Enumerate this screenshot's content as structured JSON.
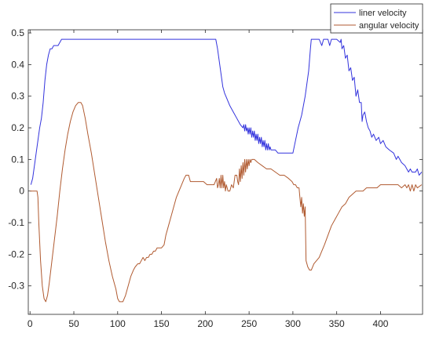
{
  "chart_data": {
    "type": "line",
    "title": "",
    "xlabel": "",
    "ylabel": "",
    "xlim": [
      -2,
      448
    ],
    "ylim": [
      -0.39,
      0.51
    ],
    "x_ticks": [
      0,
      50,
      100,
      150,
      200,
      250,
      300,
      350,
      400
    ],
    "x_tick_labels": [
      "0",
      "50",
      "100",
      "150",
      "200",
      "250",
      "300",
      "350",
      "400"
    ],
    "y_ticks": [
      0.5,
      0.4,
      0.3,
      0.2,
      0.1,
      0,
      -0.1,
      -0.2,
      -0.3
    ],
    "y_tick_labels": [
      "0.5",
      "0.4",
      "0.3",
      "0.2",
      "0.1",
      "0",
      "-0.1",
      "-0.2",
      "-0.3"
    ],
    "grid": false,
    "legend_position": "top-right",
    "series": [
      {
        "name": "liner velocity",
        "color": "#3333dd",
        "points": [
          [
            1,
            0.02
          ],
          [
            3,
            0.04
          ],
          [
            5,
            0.08
          ],
          [
            7,
            0.12
          ],
          [
            9,
            0.16
          ],
          [
            11,
            0.2
          ],
          [
            13,
            0.23
          ],
          [
            15,
            0.28
          ],
          [
            17,
            0.35
          ],
          [
            19,
            0.4
          ],
          [
            21,
            0.43
          ],
          [
            23,
            0.45
          ],
          [
            25,
            0.45
          ],
          [
            27,
            0.46
          ],
          [
            30,
            0.46
          ],
          [
            32,
            0.46
          ],
          [
            34,
            0.47
          ],
          [
            36,
            0.48
          ],
          [
            60,
            0.48
          ],
          [
            100,
            0.48
          ],
          [
            150,
            0.48
          ],
          [
            200,
            0.48
          ],
          [
            212,
            0.48
          ],
          [
            214,
            0.45
          ],
          [
            216,
            0.41
          ],
          [
            218,
            0.37
          ],
          [
            220,
            0.33
          ],
          [
            222,
            0.31
          ],
          [
            225,
            0.29
          ],
          [
            228,
            0.27
          ],
          [
            232,
            0.25
          ],
          [
            236,
            0.23
          ],
          [
            240,
            0.21
          ],
          [
            243,
            0.2
          ],
          [
            244,
            0.21
          ],
          [
            245,
            0.19
          ],
          [
            246,
            0.21
          ],
          [
            247,
            0.19
          ],
          [
            248,
            0.2
          ],
          [
            249,
            0.18
          ],
          [
            250,
            0.2
          ],
          [
            251,
            0.18
          ],
          [
            252,
            0.2
          ],
          [
            253,
            0.17
          ],
          [
            254,
            0.19
          ],
          [
            255,
            0.17
          ],
          [
            256,
            0.19
          ],
          [
            257,
            0.16
          ],
          [
            258,
            0.18
          ],
          [
            259,
            0.16
          ],
          [
            260,
            0.18
          ],
          [
            261,
            0.15
          ],
          [
            262,
            0.17
          ],
          [
            263,
            0.15
          ],
          [
            264,
            0.17
          ],
          [
            265,
            0.14
          ],
          [
            266,
            0.16
          ],
          [
            267,
            0.14
          ],
          [
            268,
            0.16
          ],
          [
            269,
            0.13
          ],
          [
            270,
            0.15
          ],
          [
            271,
            0.13
          ],
          [
            272,
            0.15
          ],
          [
            273,
            0.13
          ],
          [
            274,
            0.14
          ],
          [
            275,
            0.13
          ],
          [
            280,
            0.13
          ],
          [
            283,
            0.12
          ],
          [
            290,
            0.12
          ],
          [
            296,
            0.12
          ],
          [
            300,
            0.12
          ],
          [
            303,
            0.16
          ],
          [
            306,
            0.2
          ],
          [
            310,
            0.24
          ],
          [
            314,
            0.3
          ],
          [
            318,
            0.38
          ],
          [
            320,
            0.45
          ],
          [
            321,
            0.48
          ],
          [
            330,
            0.48
          ],
          [
            333,
            0.46
          ],
          [
            335,
            0.48
          ],
          [
            340,
            0.48
          ],
          [
            342,
            0.46
          ],
          [
            344,
            0.48
          ],
          [
            350,
            0.48
          ],
          [
            354,
            0.47
          ],
          [
            355,
            0.48
          ],
          [
            356,
            0.45
          ],
          [
            358,
            0.46
          ],
          [
            360,
            0.42
          ],
          [
            362,
            0.43
          ],
          [
            364,
            0.38
          ],
          [
            366,
            0.39
          ],
          [
            368,
            0.35
          ],
          [
            370,
            0.36
          ],
          [
            372,
            0.3
          ],
          [
            374,
            0.32
          ],
          [
            376,
            0.28
          ],
          [
            378,
            0.28
          ],
          [
            379,
            0.22
          ],
          [
            380,
            0.24
          ],
          [
            382,
            0.25
          ],
          [
            384,
            0.22
          ],
          [
            386,
            0.2
          ],
          [
            388,
            0.19
          ],
          [
            390,
            0.17
          ],
          [
            392,
            0.18
          ],
          [
            395,
            0.16
          ],
          [
            398,
            0.17
          ],
          [
            400,
            0.15
          ],
          [
            403,
            0.16
          ],
          [
            406,
            0.14
          ],
          [
            410,
            0.13
          ],
          [
            415,
            0.12
          ],
          [
            418,
            0.1
          ],
          [
            420,
            0.11
          ],
          [
            424,
            0.09
          ],
          [
            428,
            0.08
          ],
          [
            430,
            0.07
          ],
          [
            432,
            0.06
          ],
          [
            434,
            0.07
          ],
          [
            436,
            0.06
          ],
          [
            440,
            0.06
          ],
          [
            442,
            0.07
          ],
          [
            444,
            0.05
          ],
          [
            447,
            0.06
          ]
        ]
      },
      {
        "name": "angular velocity",
        "color": "#b05a30",
        "points": [
          [
            0,
            0.0
          ],
          [
            8,
            0.0
          ],
          [
            9,
            -0.02
          ],
          [
            10,
            -0.1
          ],
          [
            12,
            -0.22
          ],
          [
            14,
            -0.3
          ],
          [
            16,
            -0.34
          ],
          [
            18,
            -0.35
          ],
          [
            20,
            -0.33
          ],
          [
            22,
            -0.29
          ],
          [
            25,
            -0.22
          ],
          [
            28,
            -0.15
          ],
          [
            31,
            -0.08
          ],
          [
            34,
            0.0
          ],
          [
            37,
            0.07
          ],
          [
            40,
            0.13
          ],
          [
            43,
            0.18
          ],
          [
            46,
            0.22
          ],
          [
            49,
            0.25
          ],
          [
            52,
            0.27
          ],
          [
            55,
            0.28
          ],
          [
            58,
            0.28
          ],
          [
            60,
            0.27
          ],
          [
            63,
            0.23
          ],
          [
            66,
            0.18
          ],
          [
            70,
            0.12
          ],
          [
            74,
            0.05
          ],
          [
            78,
            -0.02
          ],
          [
            82,
            -0.09
          ],
          [
            86,
            -0.16
          ],
          [
            90,
            -0.22
          ],
          [
            94,
            -0.27
          ],
          [
            98,
            -0.31
          ],
          [
            100,
            -0.34
          ],
          [
            102,
            -0.35
          ],
          [
            106,
            -0.35
          ],
          [
            109,
            -0.33
          ],
          [
            112,
            -0.3
          ],
          [
            115,
            -0.27
          ],
          [
            118,
            -0.25
          ],
          [
            120,
            -0.24
          ],
          [
            123,
            -0.23
          ],
          [
            125,
            -0.23
          ],
          [
            127,
            -0.22
          ],
          [
            129,
            -0.21
          ],
          [
            131,
            -0.22
          ],
          [
            133,
            -0.21
          ],
          [
            135,
            -0.21
          ],
          [
            137,
            -0.2
          ],
          [
            139,
            -0.2
          ],
          [
            141,
            -0.19
          ],
          [
            143,
            -0.19
          ],
          [
            145,
            -0.18
          ],
          [
            148,
            -0.18
          ],
          [
            150,
            -0.18
          ],
          [
            153,
            -0.17
          ],
          [
            155,
            -0.14
          ],
          [
            158,
            -0.11
          ],
          [
            161,
            -0.08
          ],
          [
            164,
            -0.05
          ],
          [
            167,
            -0.02
          ],
          [
            170,
            0.0
          ],
          [
            173,
            0.02
          ],
          [
            176,
            0.04
          ],
          [
            178,
            0.05
          ],
          [
            181,
            0.05
          ],
          [
            183,
            0.03
          ],
          [
            186,
            0.03
          ],
          [
            190,
            0.03
          ],
          [
            194,
            0.03
          ],
          [
            198,
            0.03
          ],
          [
            202,
            0.02
          ],
          [
            206,
            0.02
          ],
          [
            210,
            0.02
          ],
          [
            213,
            0.04
          ],
          [
            214,
            0.01
          ],
          [
            215,
            0.02
          ],
          [
            216,
            0.04
          ],
          [
            217,
            0.01
          ],
          [
            218,
            0.05
          ],
          [
            219,
            0.01
          ],
          [
            220,
            0.05
          ],
          [
            221,
            0.01
          ],
          [
            222,
            0.03
          ],
          [
            223,
            0.0
          ],
          [
            224,
            0.02
          ],
          [
            226,
            0.0
          ],
          [
            228,
            0.0
          ],
          [
            230,
            0.02
          ],
          [
            232,
            0.01
          ],
          [
            234,
            0.05
          ],
          [
            236,
            0.05
          ],
          [
            237,
            0.03
          ],
          [
            238,
            0.02
          ],
          [
            239,
            0.07
          ],
          [
            240,
            0.03
          ],
          [
            241,
            0.08
          ],
          [
            242,
            0.04
          ],
          [
            243,
            0.09
          ],
          [
            244,
            0.05
          ],
          [
            245,
            0.1
          ],
          [
            246,
            0.06
          ],
          [
            247,
            0.1
          ],
          [
            248,
            0.07
          ],
          [
            249,
            0.1
          ],
          [
            250,
            0.08
          ],
          [
            251,
            0.1
          ],
          [
            252,
            0.09
          ],
          [
            253,
            0.1
          ],
          [
            256,
            0.1
          ],
          [
            260,
            0.09
          ],
          [
            265,
            0.08
          ],
          [
            270,
            0.07
          ],
          [
            275,
            0.07
          ],
          [
            280,
            0.06
          ],
          [
            285,
            0.05
          ],
          [
            290,
            0.05
          ],
          [
            295,
            0.04
          ],
          [
            299,
            0.03
          ],
          [
            301,
            0.02
          ],
          [
            303,
            0.02
          ],
          [
            305,
            0.01
          ],
          [
            307,
            0.01
          ],
          [
            308,
            -0.02
          ],
          [
            309,
            -0.05
          ],
          [
            310,
            -0.02
          ],
          [
            311,
            -0.07
          ],
          [
            312,
            -0.04
          ],
          [
            313,
            -0.08
          ],
          [
            314,
            -0.05
          ],
          [
            315,
            -0.22
          ],
          [
            317,
            -0.24
          ],
          [
            319,
            -0.25
          ],
          [
            321,
            -0.25
          ],
          [
            324,
            -0.23
          ],
          [
            327,
            -0.22
          ],
          [
            330,
            -0.21
          ],
          [
            333,
            -0.19
          ],
          [
            336,
            -0.17
          ],
          [
            340,
            -0.14
          ],
          [
            344,
            -0.11
          ],
          [
            348,
            -0.09
          ],
          [
            352,
            -0.07
          ],
          [
            356,
            -0.05
          ],
          [
            360,
            -0.04
          ],
          [
            364,
            -0.02
          ],
          [
            368,
            -0.01
          ],
          [
            372,
            0.0
          ],
          [
            376,
            0.0
          ],
          [
            380,
            0.0
          ],
          [
            384,
            0.01
          ],
          [
            388,
            0.01
          ],
          [
            392,
            0.01
          ],
          [
            396,
            0.01
          ],
          [
            400,
            0.02
          ],
          [
            404,
            0.02
          ],
          [
            408,
            0.02
          ],
          [
            412,
            0.02
          ],
          [
            416,
            0.02
          ],
          [
            420,
            0.02
          ],
          [
            424,
            0.01
          ],
          [
            428,
            0.02
          ],
          [
            430,
            0.01
          ],
          [
            432,
            0.02
          ],
          [
            434,
            0.0
          ],
          [
            436,
            0.02
          ],
          [
            438,
            0.0
          ],
          [
            440,
            0.02
          ],
          [
            442,
            0.01
          ],
          [
            447,
            0.02
          ]
        ]
      }
    ]
  }
}
